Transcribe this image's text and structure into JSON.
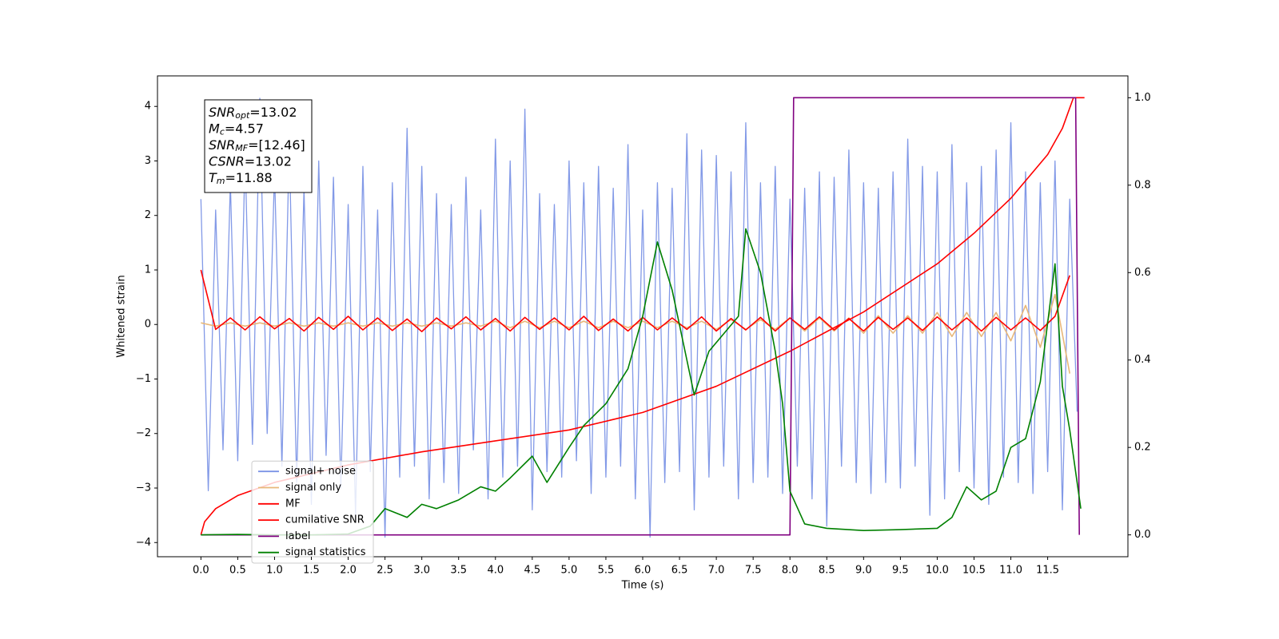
{
  "chart_data": {
    "type": "line",
    "xlabel": "Time (s)",
    "ylabel": "Whitened strain",
    "xlim": [
      -0.59,
      12.59
    ],
    "ylim": [
      -4.26,
      4.56
    ],
    "y2lim": [
      -0.05,
      1.05
    ],
    "xticks": [
      {
        "value": 0,
        "label": "0.0"
      },
      0.5,
      {
        "value": 1,
        "label": "1.0"
      },
      1.5,
      {
        "value": 2,
        "label": "2.0"
      },
      2.5,
      {
        "value": 3,
        "label": "3.0"
      },
      3.5,
      {
        "value": 4,
        "label": "4.0"
      },
      4.5,
      {
        "value": 5,
        "label": "5.0"
      },
      5.5,
      {
        "value": 6,
        "label": "6.0"
      },
      6.5,
      {
        "value": 7,
        "label": "7.0"
      },
      7.5,
      {
        "value": 8,
        "label": "8.0"
      },
      8.5,
      {
        "value": 9,
        "label": "9.0"
      },
      9.5,
      {
        "value": 10,
        "label": "10.0"
      },
      10.5,
      {
        "value": 11,
        "label": "11.0"
      },
      11.5
    ],
    "yticks": [
      -4,
      -3,
      -2,
      -1,
      0,
      1,
      2,
      3,
      4
    ],
    "y2ticks": [
      {
        "value": 0,
        "label": "0.0"
      },
      0.2,
      0.4,
      0.6,
      0.8,
      {
        "value": 1,
        "label": "1.0"
      }
    ],
    "legend": "lower left",
    "annotations": [
      {
        "symbol": "SNR",
        "subscript": "opt",
        "text": "=13.02"
      },
      {
        "symbol": "M",
        "subscript": "c",
        "text": "=4.57"
      },
      {
        "symbol": "SNR",
        "subscript": "MF",
        "text": "=[12.46]"
      },
      {
        "symbol": "CSNR",
        "text": "=13.02"
      },
      {
        "symbol": "T",
        "subscript": "m",
        "text": "=11.88"
      }
    ],
    "series": [
      {
        "name": "signal+ noise",
        "color": "#7b93e6",
        "x": [
          0,
          0.1,
          0.2,
          0.3,
          0.4,
          0.5,
          0.6,
          0.7,
          0.8,
          0.9,
          1,
          1.1,
          1.2,
          1.3,
          1.4,
          1.5,
          1.6,
          1.7,
          1.8,
          1.9,
          2,
          2.1,
          2.2,
          2.3,
          2.4,
          2.5,
          2.6,
          2.7,
          2.8,
          2.9,
          3,
          3.1,
          3.2,
          3.3,
          3.4,
          3.5,
          3.6,
          3.7,
          3.8,
          3.9,
          4,
          4.1,
          4.2,
          4.3,
          4.4,
          4.5,
          4.6,
          4.7,
          4.8,
          4.9,
          5,
          5.1,
          5.2,
          5.3,
          5.4,
          5.5,
          5.6,
          5.7,
          5.8,
          5.9,
          6,
          6.1,
          6.2,
          6.3,
          6.4,
          6.5,
          6.6,
          6.7,
          6.8,
          6.9,
          7,
          7.1,
          7.2,
          7.3,
          7.4,
          7.5,
          7.6,
          7.7,
          7.8,
          7.9,
          8,
          8.1,
          8.2,
          8.3,
          8.4,
          8.5,
          8.6,
          8.7,
          8.8,
          8.9,
          9,
          9.1,
          9.2,
          9.3,
          9.4,
          9.5,
          9.6,
          9.7,
          9.8,
          9.9,
          10,
          10.1,
          10.2,
          10.3,
          10.4,
          10.5,
          10.6,
          10.7,
          10.8,
          10.9,
          11,
          11.1,
          11.2,
          11.3,
          11.4,
          11.5,
          11.6,
          11.7,
          11.8,
          11.9
        ],
        "values": [
          2.3,
          -3.05,
          2.1,
          -2.3,
          2.6,
          -2.5,
          3.1,
          -2.2,
          4.15,
          -2.0,
          2.8,
          -2.6,
          3.3,
          -2.9,
          2.5,
          -3.3,
          3.0,
          -2.4,
          2.7,
          -3.0,
          2.2,
          -3.5,
          2.9,
          -2.7,
          2.1,
          -3.9,
          2.6,
          -2.8,
          3.6,
          -2.6,
          2.9,
          -3.2,
          2.4,
          -2.9,
          2.2,
          -3.1,
          2.7,
          -2.3,
          2.1,
          -3.2,
          3.4,
          -2.8,
          3.0,
          -2.6,
          3.95,
          -3.4,
          2.4,
          -2.7,
          2.2,
          -2.8,
          3.0,
          -2.5,
          2.6,
          -3.1,
          2.9,
          -2.8,
          2.5,
          -2.6,
          3.3,
          -3.2,
          2.1,
          -3.9,
          2.6,
          -2.9,
          2.5,
          -2.7,
          3.5,
          -3.4,
          3.2,
          -2.8,
          3.1,
          -2.6,
          2.8,
          -3.2,
          3.7,
          -2.9,
          2.6,
          -2.8,
          2.9,
          -3.1,
          2.3,
          -2.6,
          2.5,
          -3.2,
          2.8,
          -3.7,
          2.7,
          -2.6,
          3.2,
          -2.9,
          2.6,
          -3.1,
          2.5,
          -2.9,
          2.8,
          -3.0,
          3.4,
          -2.6,
          2.9,
          -3.5,
          2.8,
          -3.2,
          3.3,
          -2.7,
          2.6,
          -3.0,
          2.9,
          -3.3,
          3.2,
          -2.8,
          3.7,
          -2.9,
          2.8,
          -3.1,
          2.6,
          -2.7,
          3.0,
          -3.4,
          2.3,
          -1.6
        ]
      },
      {
        "name": "signal only",
        "color": "#e8b87a",
        "x": [
          0,
          0.2,
          0.4,
          0.6,
          0.8,
          1,
          1.2,
          1.4,
          1.6,
          1.8,
          2,
          2.2,
          2.4,
          2.6,
          2.8,
          3,
          3.2,
          3.4,
          3.6,
          3.8,
          4,
          4.2,
          4.4,
          4.6,
          4.8,
          5,
          5.2,
          5.4,
          5.6,
          5.8,
          6,
          6.2,
          6.4,
          6.6,
          6.8,
          7,
          7.2,
          7.4,
          7.6,
          7.8,
          8,
          8.2,
          8.4,
          8.6,
          8.8,
          9,
          9.2,
          9.4,
          9.6,
          9.8,
          10,
          10.2,
          10.4,
          10.6,
          10.8,
          11,
          11.2,
          11.4,
          11.6,
          11.8
        ],
        "values": [
          0.03,
          -0.03,
          0.03,
          -0.03,
          0.03,
          -0.03,
          0.03,
          -0.03,
          0.03,
          -0.03,
          0.03,
          -0.03,
          0.03,
          -0.03,
          0.03,
          -0.03,
          0.03,
          -0.03,
          0.03,
          -0.03,
          0.06,
          -0.06,
          0.06,
          -0.06,
          0.06,
          -0.06,
          0.06,
          -0.06,
          0.06,
          -0.06,
          0.06,
          -0.06,
          0.06,
          -0.06,
          0.06,
          -0.09,
          0.09,
          -0.09,
          0.09,
          -0.09,
          0.12,
          -0.12,
          0.12,
          -0.12,
          0.12,
          -0.16,
          0.16,
          -0.16,
          0.16,
          -0.16,
          0.22,
          -0.22,
          0.22,
          -0.22,
          0.22,
          -0.3,
          0.35,
          -0.42,
          0.55,
          -0.9
        ]
      },
      {
        "name": "MF",
        "color": "#ff0000",
        "x": [
          0,
          0.2,
          0.4,
          0.6,
          0.8,
          1,
          1.2,
          1.4,
          1.6,
          1.8,
          2,
          2.2,
          2.4,
          2.6,
          2.8,
          3,
          3.2,
          3.4,
          3.6,
          3.8,
          4,
          4.2,
          4.4,
          4.6,
          4.8,
          5,
          5.2,
          5.4,
          5.6,
          5.8,
          6,
          6.2,
          6.4,
          6.6,
          6.8,
          7,
          7.2,
          7.4,
          7.6,
          7.8,
          8,
          8.2,
          8.4,
          8.6,
          8.8,
          9,
          9.2,
          9.4,
          9.6,
          9.8,
          10,
          10.2,
          10.4,
          10.6,
          10.8,
          11,
          11.2,
          11.4,
          11.6,
          11.8
        ],
        "values": [
          1.0,
          -0.09,
          0.12,
          -0.1,
          0.14,
          -0.08,
          0.11,
          -0.12,
          0.13,
          -0.09,
          0.15,
          -0.1,
          0.12,
          -0.11,
          0.1,
          -0.13,
          0.12,
          -0.08,
          0.14,
          -0.1,
          0.11,
          -0.12,
          0.13,
          -0.09,
          0.12,
          -0.1,
          0.15,
          -0.11,
          0.1,
          -0.12,
          0.13,
          -0.1,
          0.12,
          -0.09,
          0.14,
          -0.12,
          0.11,
          -0.1,
          0.13,
          -0.12,
          0.12,
          -0.09,
          0.14,
          -0.1,
          0.11,
          -0.12,
          0.13,
          -0.09,
          0.12,
          -0.11,
          0.14,
          -0.1,
          0.12,
          -0.12,
          0.13,
          -0.1,
          0.12,
          -0.11,
          0.15,
          0.9
        ]
      },
      {
        "name": "cumilative SNR",
        "color": "#ff0000",
        "axis": "y2",
        "x": [
          0,
          0.05,
          0.2,
          0.5,
          1,
          2,
          3,
          4,
          5,
          6,
          7,
          8,
          9,
          10,
          10.5,
          11,
          11.5,
          11.7,
          11.85,
          11.9,
          12
        ],
        "values": [
          0,
          0.03,
          0.06,
          0.09,
          0.12,
          0.16,
          0.19,
          0.215,
          0.24,
          0.28,
          0.34,
          0.42,
          0.51,
          0.62,
          0.69,
          0.77,
          0.87,
          0.93,
          1,
          1,
          1
        ]
      },
      {
        "name": "label",
        "color": "#800080",
        "axis": "y2",
        "x": [
          0,
          8,
          8.05,
          11.88,
          11.93
        ],
        "values": [
          0,
          0,
          1,
          1,
          0
        ]
      },
      {
        "name": "signal statistics",
        "color": "#008000",
        "axis": "y2",
        "x": [
          0,
          0.5,
          1,
          1.5,
          2,
          2.3,
          2.5,
          2.8,
          3,
          3.2,
          3.5,
          3.8,
          4,
          4.2,
          4.5,
          4.7,
          5,
          5.2,
          5.5,
          5.8,
          6,
          6.2,
          6.4,
          6.6,
          6.7,
          6.9,
          7.1,
          7.3,
          7.4,
          7.6,
          7.8,
          7.9,
          8,
          8.2,
          8.5,
          9,
          9.5,
          10,
          10.2,
          10.4,
          10.6,
          10.8,
          11,
          11.2,
          11.4,
          11.6,
          11.7,
          11.8,
          11.95
        ],
        "values": [
          0,
          0.001,
          0,
          0,
          0.002,
          0.02,
          0.06,
          0.04,
          0.07,
          0.06,
          0.08,
          0.11,
          0.1,
          0.13,
          0.18,
          0.12,
          0.2,
          0.25,
          0.3,
          0.38,
          0.5,
          0.67,
          0.56,
          0.4,
          0.32,
          0.42,
          0.46,
          0.5,
          0.7,
          0.6,
          0.42,
          0.3,
          0.1,
          0.025,
          0.015,
          0.01,
          0.012,
          0.015,
          0.04,
          0.11,
          0.08,
          0.1,
          0.2,
          0.22,
          0.35,
          0.62,
          0.34,
          0.24,
          0.06
        ]
      }
    ]
  }
}
